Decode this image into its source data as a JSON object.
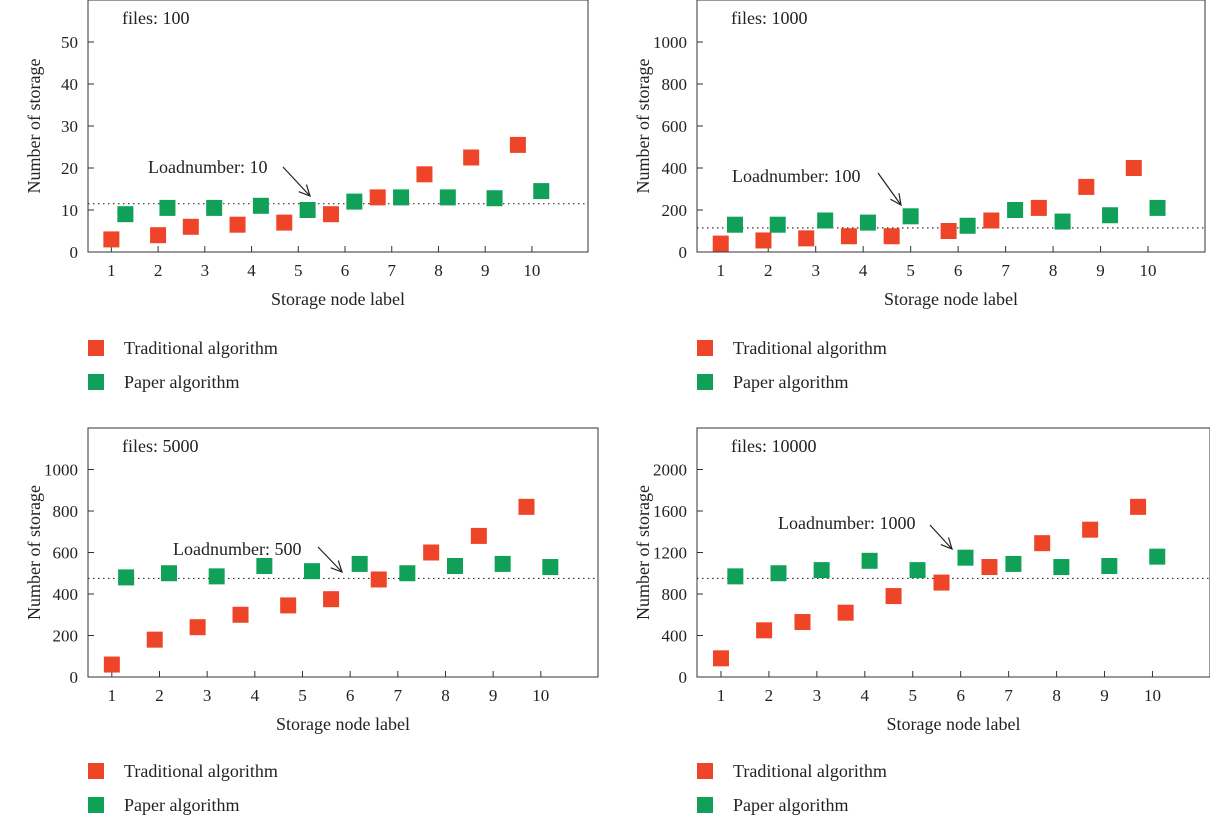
{
  "colors": {
    "traditional": "#EE4427",
    "paper": "#10A057"
  },
  "legend": {
    "traditional": "Traditional algorithm",
    "paper": "Paper algorithm"
  },
  "chart_data": [
    {
      "type": "scatter",
      "annotation_files": "files: 100",
      "annotation_load": "Loadnumber: 10",
      "xlabel": "Storage node label",
      "ylabel": "Number of storage",
      "yticks": [
        0,
        10,
        20,
        30,
        40,
        50
      ],
      "ylim": [
        0,
        60
      ],
      "xticks": [
        1,
        2,
        3,
        4,
        5,
        6,
        7,
        8,
        9,
        10
      ],
      "xlim": [
        0.5,
        11.2
      ],
      "load_line": 11.5,
      "series": [
        {
          "name": "Traditional algorithm",
          "x": [
            1,
            2,
            2.7,
            3.7,
            4.7,
            5.7,
            6.7,
            7.7,
            8.7,
            9.7
          ],
          "y": [
            3,
            4,
            6,
            6.5,
            7,
            9,
            13,
            18.5,
            22.5,
            25.5
          ]
        },
        {
          "name": "Paper algorithm",
          "x": [
            1.3,
            2.2,
            3.2,
            4.2,
            5.2,
            6.2,
            7.2,
            8.2,
            9.2,
            10.2
          ],
          "y": [
            9,
            10.5,
            10.5,
            11,
            10,
            12,
            13,
            13,
            12.8,
            14.5
          ]
        }
      ]
    },
    {
      "type": "scatter",
      "annotation_files": "files: 1000",
      "annotation_load": "Loadnumber: 100",
      "xlabel": "Storage node label",
      "ylabel": "Number of storage",
      "yticks": [
        0,
        200,
        400,
        600,
        800,
        1000
      ],
      "ylim": [
        0,
        1200
      ],
      "xticks": [
        1,
        2,
        3,
        4,
        5,
        6,
        7,
        8,
        9,
        10
      ],
      "xlim": [
        0.5,
        11.2
      ],
      "load_line": 115,
      "series": [
        {
          "name": "Traditional algorithm",
          "x": [
            1,
            1.9,
            2.8,
            3.7,
            4.6,
            5.8,
            6.7,
            7.7,
            8.7,
            9.7
          ],
          "y": [
            40,
            55,
            65,
            75,
            75,
            100,
            150,
            210,
            310,
            400
          ]
        },
        {
          "name": "Paper algorithm",
          "x": [
            1.3,
            2.2,
            3.2,
            4.1,
            5.0,
            6.2,
            7.2,
            8.2,
            9.2,
            10.2
          ],
          "y": [
            130,
            130,
            150,
            140,
            170,
            125,
            200,
            145,
            175,
            210
          ]
        }
      ]
    },
    {
      "type": "scatter",
      "annotation_files": "files: 5000",
      "annotation_load": "Loadnumber: 500",
      "xlabel": "Storage node label",
      "ylabel": "Number of storage",
      "yticks": [
        0,
        200,
        400,
        600,
        800,
        1000
      ],
      "ylim": [
        0,
        1200
      ],
      "xticks": [
        1,
        2,
        3,
        4,
        5,
        6,
        7,
        8,
        9,
        10
      ],
      "xlim": [
        0.5,
        11.2
      ],
      "load_line": 475,
      "series": [
        {
          "name": "Traditional algorithm",
          "x": [
            1,
            1.9,
            2.8,
            3.7,
            4.7,
            5.6,
            6.6,
            7.7,
            8.7,
            9.7
          ],
          "y": [
            60,
            180,
            240,
            300,
            345,
            375,
            470,
            600,
            680,
            820
          ]
        },
        {
          "name": "Paper algorithm",
          "x": [
            1.3,
            2.2,
            3.2,
            4.2,
            5.2,
            6.2,
            7.2,
            8.2,
            9.2,
            10.2
          ],
          "y": [
            480,
            500,
            485,
            535,
            510,
            545,
            500,
            535,
            545,
            530
          ]
        }
      ]
    },
    {
      "type": "scatter",
      "annotation_files": "files: 10000",
      "annotation_load": "Loadnumber: 1000",
      "xlabel": "Storage node label",
      "ylabel": "Number of storage",
      "yticks": [
        0,
        400,
        800,
        1200,
        1600,
        2000
      ],
      "ylim": [
        0,
        2400
      ],
      "xticks": [
        1,
        2,
        3,
        4,
        5,
        6,
        7,
        8,
        9,
        10
      ],
      "xlim": [
        0.5,
        11.2
      ],
      "load_line": 950,
      "series": [
        {
          "name": "Traditional algorithm",
          "x": [
            1,
            1.9,
            2.7,
            3.6,
            4.6,
            5.6,
            6.6,
            7.7,
            8.7,
            9.7
          ],
          "y": [
            180,
            450,
            530,
            620,
            780,
            910,
            1060,
            1290,
            1420,
            1640
          ]
        },
        {
          "name": "Paper algorithm",
          "x": [
            1.3,
            2.2,
            3.1,
            4.1,
            5.1,
            6.1,
            7.1,
            8.1,
            9.1,
            10.1
          ],
          "y": [
            970,
            1000,
            1030,
            1120,
            1030,
            1150,
            1090,
            1060,
            1070,
            1160
          ]
        }
      ]
    }
  ]
}
